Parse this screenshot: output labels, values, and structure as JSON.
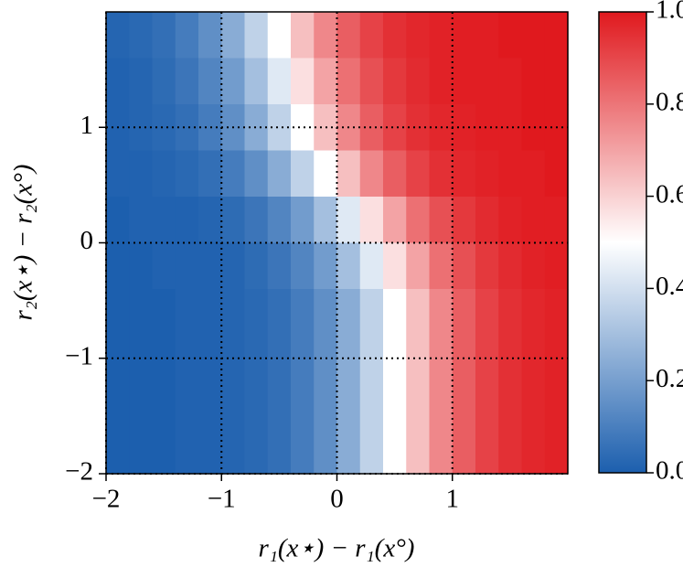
{
  "chart_data": {
    "type": "heatmap",
    "xlabel": "r₁(x⋆) − r₁(x°)",
    "ylabel": "r₂(x⋆) − r₂(x°)",
    "xlim": [
      -2,
      2
    ],
    "ylim": [
      -2,
      2
    ],
    "xticks": [
      {
        "value": -2,
        "label": "−2"
      },
      {
        "value": -1,
        "label": "−1"
      },
      0,
      1
    ],
    "yticks": [
      {
        "value": -2,
        "label": "−2"
      },
      {
        "value": -1,
        "label": "−1"
      },
      0,
      1
    ],
    "grid": true,
    "colors": [
      "#1c5fae",
      "#ffffff",
      "#e0191e"
    ],
    "zlim": [
      0,
      1
    ],
    "zticks": [
      {
        "value": 0,
        "label": "0.0"
      },
      {
        "value": 0.2,
        "label": "0.2"
      },
      {
        "value": 0.4,
        "label": "0.4"
      },
      {
        "value": 0.6,
        "label": "0.6"
      },
      {
        "value": 0.8,
        "label": "0.8"
      },
      {
        "value": 1,
        "label": "1.0"
      }
    ],
    "x": [
      -1.9,
      -1.7,
      -1.5,
      -1.3,
      -1.1,
      -0.9,
      -0.7,
      -0.5,
      -0.3,
      -0.1,
      0.1,
      0.3,
      0.5,
      0.7,
      0.9,
      1.1,
      1.3,
      1.5,
      1.7,
      1.9
    ],
    "y": [
      1.8,
      1.4,
      1.0,
      0.6,
      0.2,
      -0.2,
      -0.6,
      -1.0,
      -1.4,
      -1.8
    ],
    "z": [
      [
        0.02,
        0.03,
        0.05,
        0.09,
        0.15,
        0.24,
        0.36,
        0.5,
        0.64,
        0.76,
        0.85,
        0.91,
        0.95,
        0.97,
        0.98,
        0.99,
        0.99,
        1,
        1,
        1
      ],
      [
        0.01,
        0.02,
        0.04,
        0.07,
        0.12,
        0.19,
        0.3,
        0.43,
        0.57,
        0.7,
        0.81,
        0.88,
        0.93,
        0.96,
        0.98,
        0.99,
        0.99,
        0.99,
        1,
        1
      ],
      [
        0.01,
        0.02,
        0.03,
        0.05,
        0.09,
        0.15,
        0.24,
        0.36,
        0.5,
        0.64,
        0.76,
        0.85,
        0.91,
        0.95,
        0.97,
        0.98,
        0.99,
        0.99,
        1,
        1
      ],
      [
        0.01,
        0.01,
        0.02,
        0.03,
        0.05,
        0.09,
        0.15,
        0.24,
        0.36,
        0.5,
        0.64,
        0.76,
        0.85,
        0.91,
        0.95,
        0.97,
        0.98,
        0.99,
        0.99,
        1
      ],
      [
        0,
        0.01,
        0.01,
        0.01,
        0.02,
        0.04,
        0.07,
        0.12,
        0.19,
        0.3,
        0.43,
        0.57,
        0.7,
        0.81,
        0.88,
        0.93,
        0.96,
        0.98,
        0.99,
        0.99
      ],
      [
        0,
        0,
        0.01,
        0.01,
        0.01,
        0.02,
        0.04,
        0.07,
        0.12,
        0.19,
        0.3,
        0.43,
        0.57,
        0.7,
        0.81,
        0.88,
        0.93,
        0.96,
        0.98,
        0.99
      ],
      [
        0,
        0,
        0,
        0.01,
        0.01,
        0.02,
        0.03,
        0.05,
        0.09,
        0.15,
        0.24,
        0.36,
        0.5,
        0.64,
        0.76,
        0.85,
        0.91,
        0.95,
        0.97,
        0.98
      ],
      [
        0,
        0,
        0,
        0.01,
        0.01,
        0.02,
        0.03,
        0.05,
        0.09,
        0.15,
        0.24,
        0.36,
        0.5,
        0.64,
        0.76,
        0.85,
        0.91,
        0.95,
        0.97,
        0.98
      ],
      [
        0,
        0,
        0,
        0.01,
        0.01,
        0.02,
        0.03,
        0.05,
        0.09,
        0.15,
        0.24,
        0.36,
        0.5,
        0.64,
        0.76,
        0.85,
        0.91,
        0.95,
        0.97,
        0.98
      ],
      [
        0,
        0,
        0,
        0.01,
        0.01,
        0.02,
        0.03,
        0.05,
        0.09,
        0.15,
        0.24,
        0.36,
        0.5,
        0.64,
        0.76,
        0.85,
        0.91,
        0.95,
        0.97,
        0.98
      ]
    ]
  }
}
